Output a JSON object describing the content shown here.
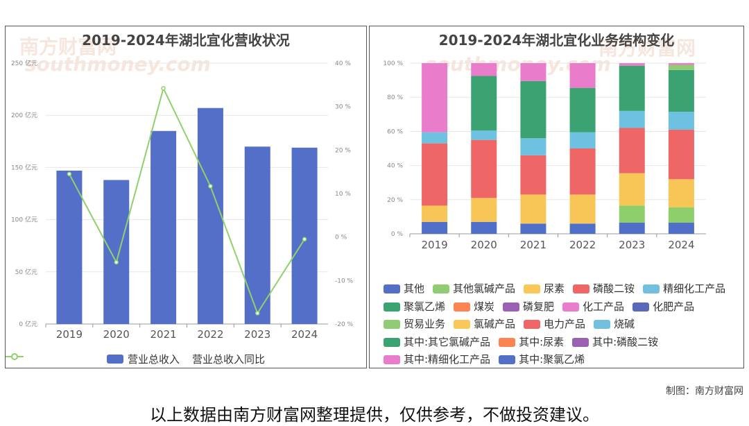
{
  "chart_data": [
    {
      "type": "bar+line",
      "title": "2019-2024年湖北宜化营收状况",
      "categories": [
        "2019",
        "2020",
        "2021",
        "2022",
        "2023",
        "2024"
      ],
      "series": [
        {
          "name": "营业总收入",
          "type": "bar",
          "axis": "left",
          "color": "#536FC8",
          "values": [
            147,
            138,
            185,
            207,
            170,
            169
          ]
        },
        {
          "name": "营业总收入同比",
          "type": "line",
          "axis": "right",
          "color": "#8FD16A",
          "values": [
            14.5,
            -5.8,
            34.2,
            11.7,
            -17.5,
            -0.5
          ]
        }
      ],
      "left_axis": {
        "ticks": [
          "0 亿元",
          "50 亿元",
          "100 亿元",
          "150 亿元",
          "200 亿元",
          "250 亿元"
        ],
        "ylim": [
          0,
          250
        ]
      },
      "right_axis": {
        "ticks": [
          "-20 %",
          "-10 %",
          "0 %",
          "10 %",
          "20 %",
          "30 %",
          "40 %"
        ],
        "ylim": [
          -20,
          40
        ]
      }
    },
    {
      "type": "stacked-bar",
      "title": "2019-2024年湖北宜化业务结构变化",
      "categories": [
        "2019",
        "2020",
        "2021",
        "2022",
        "2023",
        "2024"
      ],
      "y_axis": {
        "ticks": [
          "0 %",
          "20 %",
          "40 %",
          "60 %",
          "80 %",
          "100 %"
        ],
        "ylim": [
          0,
          100
        ]
      },
      "series": [
        {
          "name": "其中:聚氯乙烯",
          "color": "#4F6FC9",
          "values": [
            7,
            7,
            6,
            6,
            6.5,
            6.5
          ]
        },
        {
          "name": "其他氯碱产品",
          "color": "#8ECF6C",
          "values": [
            0,
            0,
            0,
            0,
            10,
            9
          ]
        },
        {
          "name": "尿素",
          "color": "#F8C656",
          "values": [
            9.5,
            14,
            17,
            17,
            19,
            16.5
          ]
        },
        {
          "name": "磷酸二铵",
          "color": "#EE6666",
          "values": [
            36.5,
            34,
            23,
            27,
            26.5,
            29
          ]
        },
        {
          "name": "精细化工产品",
          "color": "#6EC1E0",
          "values": [
            6.5,
            5.5,
            10,
            9.5,
            10,
            10.5
          ]
        },
        {
          "name": "聚氯乙烯",
          "color": "#3BA272",
          "values": [
            0,
            32,
            33.5,
            26,
            26.5,
            24.5
          ]
        },
        {
          "name": "贸易业务",
          "color": "#91CC75",
          "values": [
            0,
            0,
            0,
            0,
            0,
            3
          ]
        },
        {
          "name": "化工产品",
          "color": "#EA7CCC",
          "values": [
            40.5,
            7.5,
            10.5,
            14.5,
            1.5,
            1
          ]
        }
      ],
      "legend": [
        [
          {
            "name": "其他",
            "color": "#5470C6"
          },
          {
            "name": "其他氯碱产品",
            "color": "#91CC75"
          },
          {
            "name": "尿素",
            "color": "#FAC858"
          },
          {
            "name": "磷酸二铵",
            "color": "#EE6666"
          },
          {
            "name": "精细化工产品",
            "color": "#73C0DE"
          }
        ],
        [
          {
            "name": "聚氯乙烯",
            "color": "#3BA272"
          },
          {
            "name": "煤炭",
            "color": "#FC8452"
          },
          {
            "name": "磷复肥",
            "color": "#9A60B4"
          },
          {
            "name": "化工产品",
            "color": "#EA7CCC"
          },
          {
            "name": "化肥产品",
            "color": "#5B6AB8"
          }
        ],
        [
          {
            "name": "贸易业务",
            "color": "#91CC75"
          },
          {
            "name": "氯碱产品",
            "color": "#FAC858"
          },
          {
            "name": "电力产品",
            "color": "#EE6666"
          },
          {
            "name": "烧碱",
            "color": "#73C0DE"
          }
        ],
        [
          {
            "name": "其中:其它氯碱产品",
            "color": "#3BA272"
          },
          {
            "name": "其中:尿素",
            "color": "#FC8452"
          },
          {
            "name": "其中:磷酸二铵",
            "color": "#9A60B4"
          }
        ],
        [
          {
            "name": "其中:精细化工产品",
            "color": "#EA7CCC"
          },
          {
            "name": "其中:聚氯乙烯",
            "color": "#5470C6"
          }
        ]
      ]
    }
  ],
  "credit": "制图：南方财富网",
  "disclaimer": "以上数据由南方财富网整理提供，仅供参考，不做投资建议。",
  "watermark": {
    "cn": "南方财富网",
    "en": "southmoney.com"
  }
}
